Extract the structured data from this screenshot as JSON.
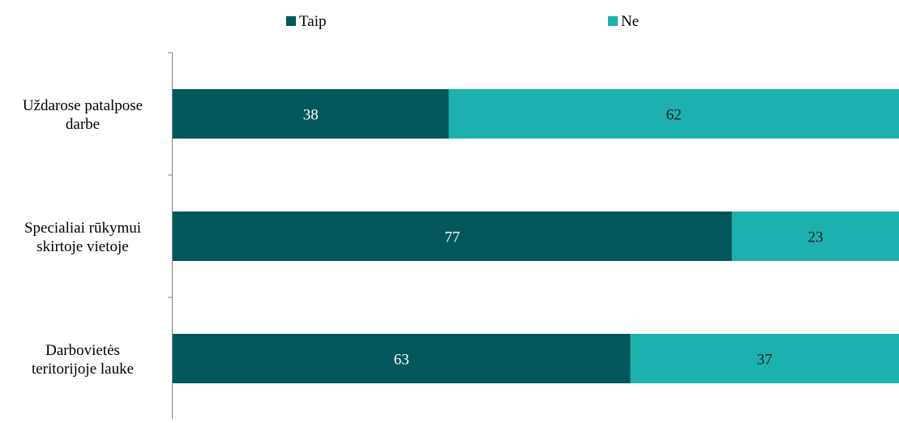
{
  "chart_data": {
    "type": "bar",
    "orientation": "horizontal",
    "stacked": true,
    "categories": [
      [
        "Uždarose patalpose",
        "darbe"
      ],
      [
        "Specialiai rūkymui",
        "skirtoje vietoje"
      ],
      [
        "Darbovietės",
        "teritorijoje lauke"
      ]
    ],
    "series": [
      {
        "name": "Taip",
        "values": [
          38,
          77,
          63
        ]
      },
      {
        "name": "Ne",
        "values": [
          62,
          23,
          37
        ]
      }
    ],
    "xlim": [
      0,
      100
    ],
    "grid": false,
    "legend": "top",
    "title": "",
    "xlabel": "",
    "ylabel": ""
  },
  "colors": {
    "Taip": "#03575b",
    "Ne": "#1cb1ae",
    "axis": "#808080",
    "label_on_dark": "#ffffff",
    "label_on_light": "#1a1a1a"
  }
}
